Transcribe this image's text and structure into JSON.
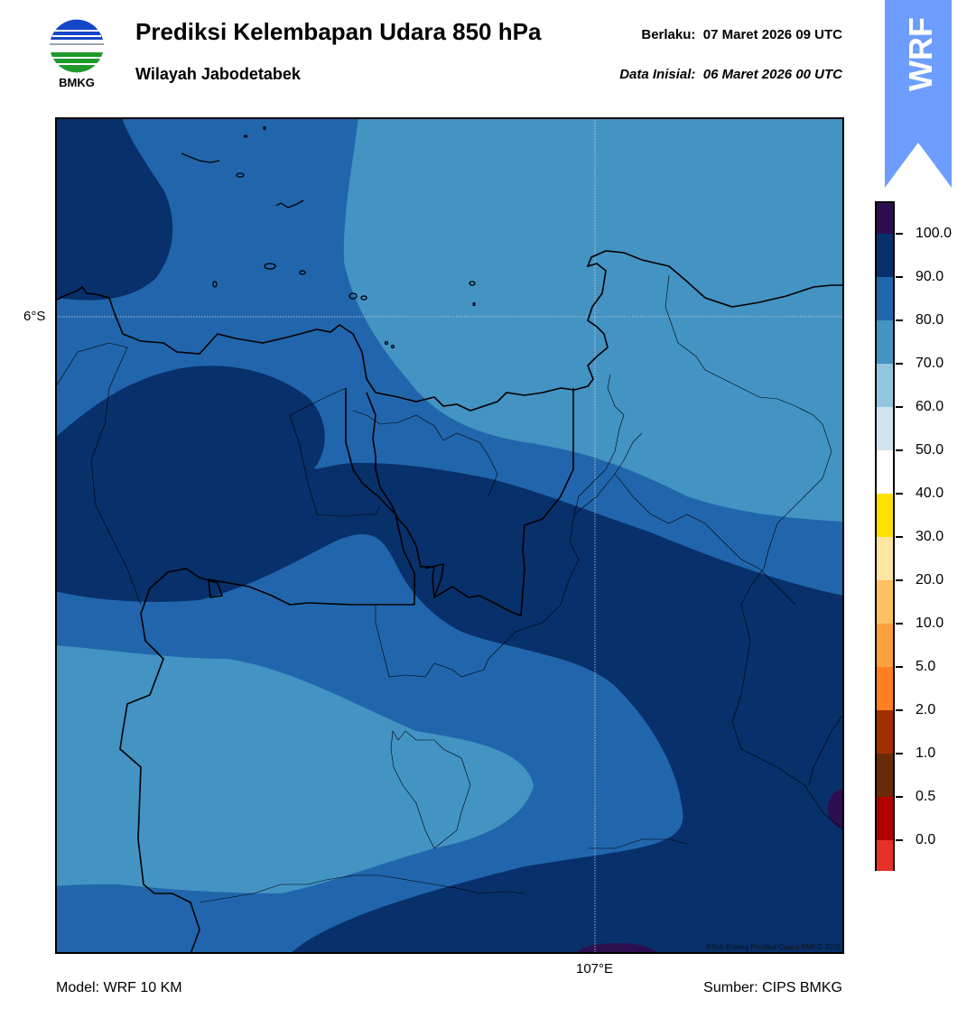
{
  "header": {
    "logo_text": "BMKG",
    "title": "Prediksi Kelembapan Udara 850 hPa",
    "subtitle": "Wilayah Jabodetabek",
    "valid_label": "Berlaku:",
    "valid_value": "07 Maret 2026 09 UTC",
    "init_label": "Data Inisial:",
    "init_value": "06 Maret 2026 00 UTC"
  },
  "badge": {
    "text": "WRF",
    "color": "#6c9dff"
  },
  "map": {
    "lat_label": "6°S",
    "lon_label": "107°E",
    "copyright": "©Sub Bidang Prediksi Cuaca BMKG 2026"
  },
  "colorbar": {
    "labels": [
      "100.0",
      "90.0",
      "80.0",
      "70.0",
      "60.0",
      "50.0",
      "40.0",
      "30.0",
      "20.0",
      "10.0",
      "5.0",
      "2.0",
      "1.0",
      "0.5",
      "0.0"
    ],
    "colors_top_to_bottom": [
      "#2d0f4f",
      "#08306b",
      "#2166ac",
      "#4393c3",
      "#92c5de",
      "#d1e5f0",
      "#ffffff",
      "#ffe000",
      "#ffe6a0",
      "#ffc060",
      "#ffa040",
      "#ff8020",
      "#e05010",
      "#a03000",
      "#6a2a0a",
      "#b00000",
      "#e83028"
    ]
  },
  "footer": {
    "model": "Model: WRF 10 KM",
    "source": "Sumber: CIPS BMKG"
  }
}
